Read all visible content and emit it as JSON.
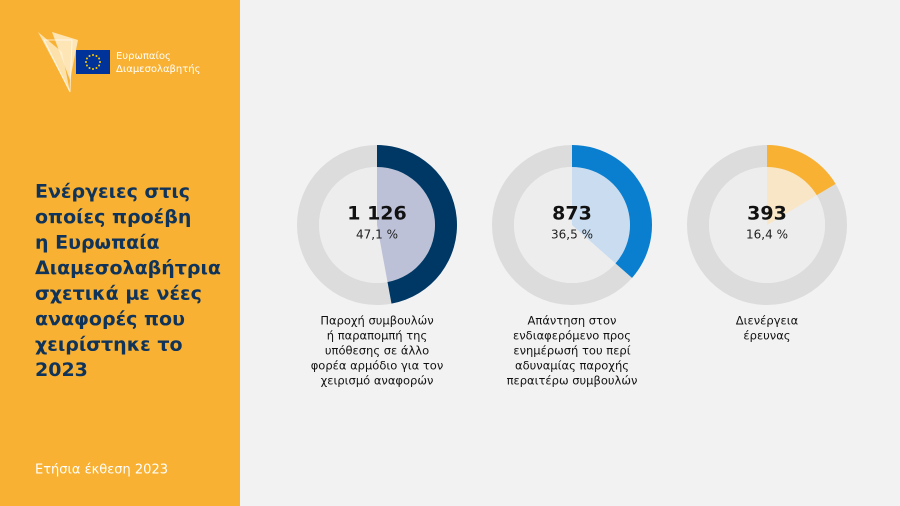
{
  "logo": {
    "lines": [
      "Ευρωπαίος",
      "Διαμεσολαβητής"
    ]
  },
  "sidebar": {
    "title_lines": [
      "Ενέργειες στις",
      "οποίες προέβη",
      "η Ευρωπαία",
      "Διαμεσολαβήτρια",
      "σχετικά με νέες",
      "αναφορές που",
      "χειρίστηκε το",
      "2023"
    ],
    "footer": "Ετήσια έκθεση 2023"
  },
  "chart_data": [
    {
      "type": "donut",
      "values": [
        47.1
      ],
      "value_labels": [
        "47,1 %"
      ],
      "count": 1126,
      "count_label": "1 126",
      "color": "#003865",
      "inner_color": "#bcc1d8",
      "label_lines": [
        "Παροχή συμβουλών",
        "ή παραπομπή της",
        "υπόθεσης σε άλλο",
        "φορέα αρμόδιο για τον",
        "χειρισμό αναφορών"
      ]
    },
    {
      "type": "donut",
      "values": [
        36.5
      ],
      "value_labels": [
        "36,5 %"
      ],
      "count": 873,
      "count_label": "873",
      "color": "#0a7fd0",
      "inner_color": "#cadcf0",
      "label_lines": [
        "Απάντηση στον",
        "ενδιαφερόμενο προς",
        "ενημέρωσή του περί",
        "αδυναμίας παροχής",
        "περαιτέρω συμβουλών"
      ]
    },
    {
      "type": "donut",
      "values": [
        16.4
      ],
      "value_labels": [
        "16,4 %"
      ],
      "count": 393,
      "count_label": "393",
      "color": "#f8b133",
      "inner_color": "#f9e6c6",
      "label_lines": [
        "Διενέργεια",
        "έρευνας"
      ]
    }
  ]
}
